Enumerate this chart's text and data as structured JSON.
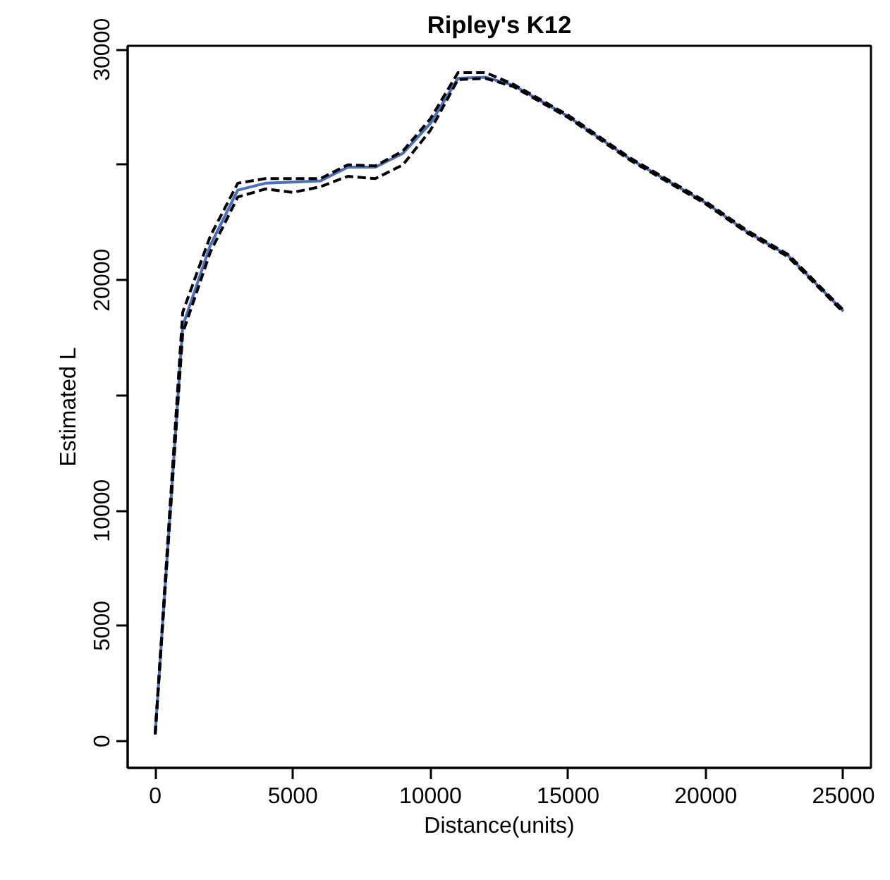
{
  "chart_data": {
    "type": "line",
    "title": "Ripley's K12",
    "xlabel": "Distance(units)",
    "ylabel": "Estimated L",
    "x": [
      0,
      1000,
      2000,
      3000,
      4000,
      5000,
      6000,
      7000,
      8000,
      9000,
      10000,
      11000,
      12000,
      13000,
      15000,
      17250,
      20000,
      21500,
      23000,
      25000
    ],
    "series": [
      {
        "color": "#4a6fbf",
        "line_style": "solid",
        "values": [
          300,
          18000,
          21500,
          23900,
          24200,
          24250,
          24300,
          24900,
          24900,
          25500,
          26800,
          28750,
          28800,
          28450,
          27100,
          25250,
          23350,
          22100,
          21050,
          18650
        ]
      },
      {
        "color": "#000000",
        "line_style": "dashed",
        "values": [
          300,
          18600,
          21900,
          24200,
          24400,
          24400,
          24400,
          25000,
          24950,
          25600,
          27000,
          29000,
          29000,
          28500,
          27150,
          25300,
          23400,
          22150,
          21100,
          18700
        ]
      },
      {
        "color": "#000000",
        "line_style": "dashed",
        "values": [
          300,
          17700,
          21200,
          23600,
          23950,
          23800,
          24050,
          24500,
          24400,
          25000,
          26500,
          28700,
          28750,
          28400,
          27050,
          25200,
          23300,
          22050,
          21000,
          18600
        ]
      }
    ],
    "xlim": [
      -1000,
      26000
    ],
    "ylim": [
      -1160,
      30160
    ],
    "xticks": [
      0,
      5000,
      10000,
      15000,
      20000,
      25000
    ],
    "yticks": [
      0,
      5000,
      10000,
      {
        "value": 15000,
        "label": null
      },
      20000,
      {
        "value": 25000,
        "label": null
      },
      30000
    ],
    "grid": false
  }
}
